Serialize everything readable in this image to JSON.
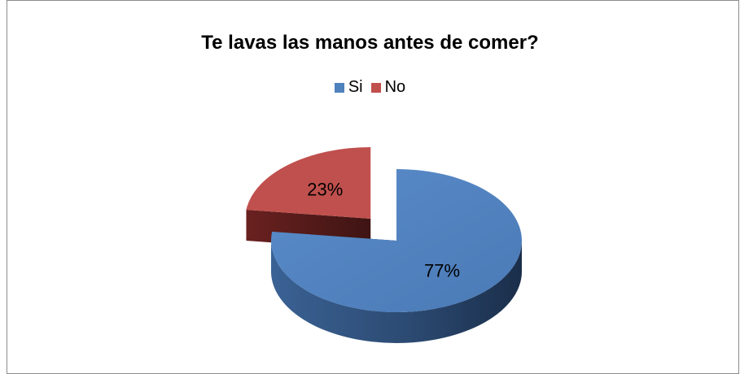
{
  "chart_data": {
    "type": "pie",
    "title": "Te lavas las manos antes de comer?",
    "categories": [
      "Si",
      "No"
    ],
    "values": [
      77,
      23
    ],
    "data_labels": [
      "77%",
      "23%"
    ],
    "colors": {
      "Si": "#4f81bd",
      "No": "#c0504d"
    },
    "legend_position": "top",
    "style": "3d-exploded"
  }
}
